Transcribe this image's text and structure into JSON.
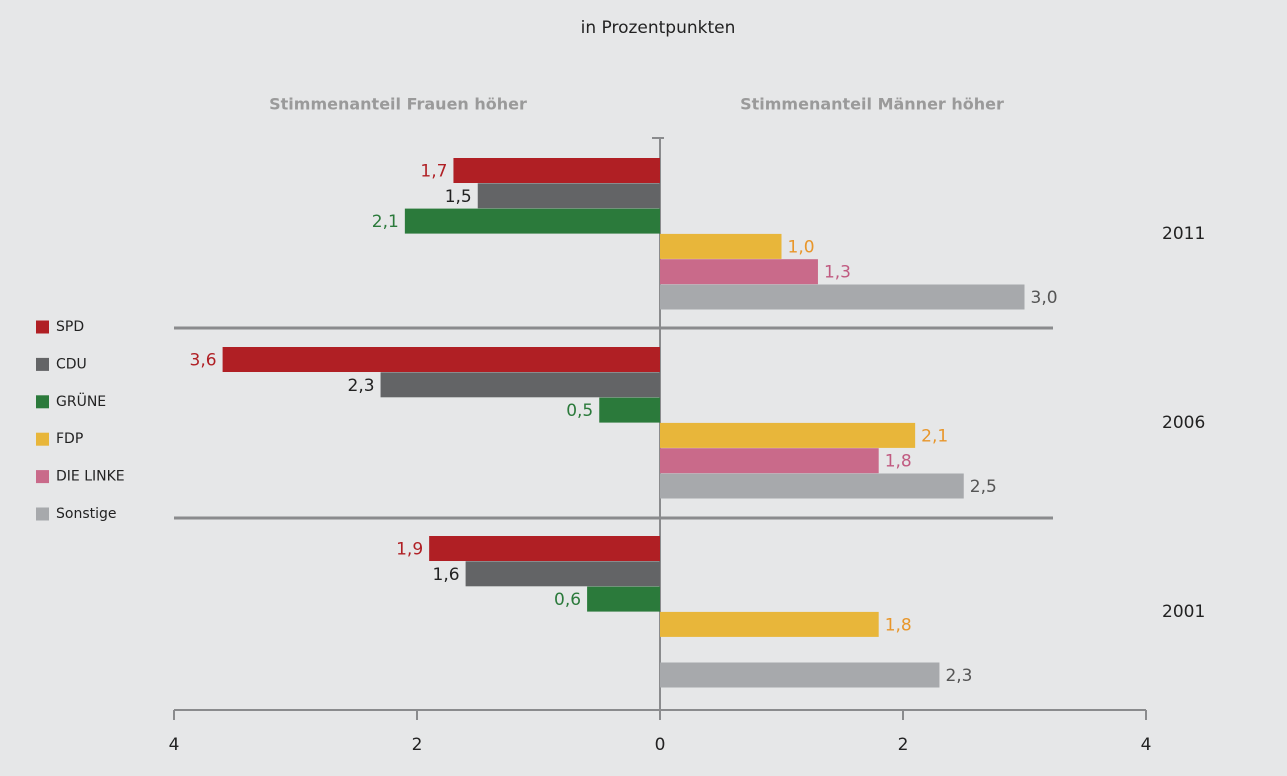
{
  "chart_data": {
    "type": "bar",
    "orientation": "horizontal",
    "subtitle": "in Prozentpunkten",
    "left_header": "Stimmenanteil Frauen höher",
    "right_header": "Stimmenanteil Männer höher",
    "categories": [
      "2011",
      "2006",
      "2001"
    ],
    "series": [
      {
        "name": "SPD",
        "color": "#b01f24",
        "label_color": "#b01f24",
        "values": [
          -1.7,
          -3.6,
          -1.9
        ],
        "value_labels": [
          "1,7",
          "3,6",
          "1,9"
        ]
      },
      {
        "name": "CDU",
        "color": "#636466",
        "label_color": "#222222",
        "values": [
          -1.5,
          -2.3,
          -1.6
        ],
        "value_labels": [
          "1,5",
          "2,3",
          "1,6"
        ]
      },
      {
        "name": "GRÜNE",
        "color": "#2b7a3b",
        "label_color": "#2b7a3b",
        "values": [
          -2.1,
          -0.5,
          -0.6
        ],
        "value_labels": [
          "2,1",
          "0,5",
          "0,6"
        ]
      },
      {
        "name": "FDP",
        "color": "#e8b63a",
        "label_color": "#e8962a",
        "values": [
          1.0,
          2.1,
          1.8
        ],
        "value_labels": [
          "1,0",
          "2,1",
          "1,8"
        ]
      },
      {
        "name": "DIE LINKE",
        "color": "#c96a8a",
        "label_color": "#c05a80",
        "values": [
          1.3,
          1.8,
          null
        ],
        "value_labels": [
          "1,3",
          "1,8",
          null
        ]
      },
      {
        "name": "Sonstige",
        "color": "#a7a9ac",
        "label_color": "#555555",
        "values": [
          3.0,
          2.5,
          2.3
        ],
        "value_labels": [
          "3,0",
          "2,5",
          "2,3"
        ]
      }
    ],
    "xlim": [
      -4,
      4
    ],
    "xticks": [
      {
        "value": -4,
        "label": "4"
      },
      {
        "value": -2,
        "label": "2"
      },
      0,
      2,
      4
    ]
  }
}
